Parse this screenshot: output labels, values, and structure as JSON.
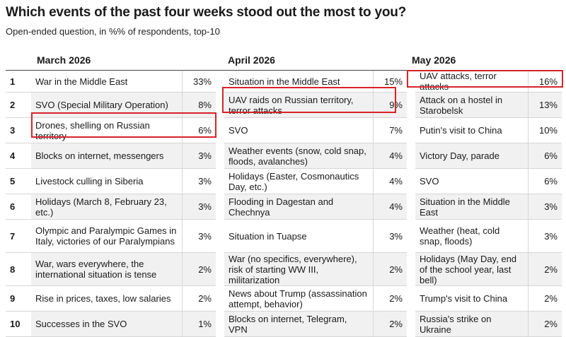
{
  "title": "Which events of the past four weeks stood out the most to you?",
  "subtitle": "Open-ended question, in %% of respondents, top-10",
  "highlight_color": "#d6232a",
  "chart_data": {
    "type": "table",
    "title": "Which events of the past four weeks stood out the most to you?",
    "subtitle": "Open-ended question, in %% of respondents, top-10",
    "ranks": [
      "1",
      "2",
      "3",
      "4",
      "5",
      "6",
      "7",
      "8",
      "9",
      "10"
    ],
    "columns": [
      {
        "month": "March 2026",
        "rows": [
          {
            "event": "War in the Middle East",
            "pct": "33%",
            "value": 33
          },
          {
            "event": "SVO (Special Military Operation)",
            "pct": "8%",
            "value": 8
          },
          {
            "event": "Drones, shelling on Russian territory",
            "pct": "6%",
            "value": 6,
            "highlighted": true
          },
          {
            "event": "Blocks on internet, messengers",
            "pct": "3%",
            "value": 3
          },
          {
            "event": "Livestock culling in Siberia",
            "pct": "3%",
            "value": 3
          },
          {
            "event": "Holidays (March 8, February 23, etc.)",
            "pct": "3%",
            "value": 3
          },
          {
            "event": "Olympic and Paralympic Games in Italy, victories of our Paralympians",
            "pct": "3%",
            "value": 3
          },
          {
            "event": "War, wars everywhere, the international situation is tense",
            "pct": "2%",
            "value": 2
          },
          {
            "event": "Rise in prices, taxes, low salaries",
            "pct": "2%",
            "value": 2
          },
          {
            "event": "Successes in the SVO",
            "pct": "1%",
            "value": 1
          }
        ]
      },
      {
        "month": "April 2026",
        "rows": [
          {
            "event": "Situation in the Middle East",
            "pct": "15%",
            "value": 15
          },
          {
            "event": "UAV raids on Russian territory, terror attacks",
            "pct": "9%",
            "value": 9,
            "highlighted": true
          },
          {
            "event": "SVO",
            "pct": "7%",
            "value": 7
          },
          {
            "event": "Weather events (snow, cold snap, floods, avalanches)",
            "pct": "4%",
            "value": 4
          },
          {
            "event": "Holidays (Easter, Cosmonautics Day, etc.)",
            "pct": "4%",
            "value": 4
          },
          {
            "event": "Flooding in Dagestan and Chechnya",
            "pct": "4%",
            "value": 4
          },
          {
            "event": "Situation in Tuapse",
            "pct": "3%",
            "value": 3
          },
          {
            "event": "War (no specifics, everywhere), risk of starting WW III, militarization",
            "pct": "2%",
            "value": 2
          },
          {
            "event": "News about Trump (assassination attempt, behavior)",
            "pct": "2%",
            "value": 2
          },
          {
            "event": "Blocks on internet, Telegram, VPN",
            "pct": "2%",
            "value": 2
          }
        ]
      },
      {
        "month": "May 2026",
        "rows": [
          {
            "event": "UAV attacks, terror attacks",
            "pct": "16%",
            "value": 16,
            "highlighted": true
          },
          {
            "event": "Attack on a hostel in Starobelsk",
            "pct": "13%",
            "value": 13
          },
          {
            "event": "Putin's visit to China",
            "pct": "10%",
            "value": 10
          },
          {
            "event": "Victory Day, parade",
            "pct": "6%",
            "value": 6
          },
          {
            "event": "SVO",
            "pct": "6%",
            "value": 6
          },
          {
            "event": "Situation in the Middle East",
            "pct": "3%",
            "value": 3
          },
          {
            "event": "Weather (heat, cold snap, floods)",
            "pct": "3%",
            "value": 3
          },
          {
            "event": "Holidays (May Day, end of the school year, last bell)",
            "pct": "2%",
            "value": 2
          },
          {
            "event": "Trump's visit to China",
            "pct": "2%",
            "value": 2
          },
          {
            "event": "Russia's strike on Ukraine",
            "pct": "2%",
            "value": 2
          }
        ]
      }
    ]
  }
}
